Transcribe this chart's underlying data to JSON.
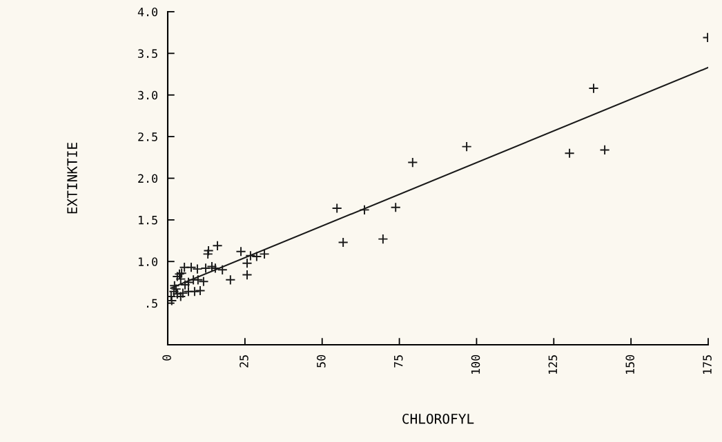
{
  "chart_data": {
    "type": "scatter",
    "xlabel": "CHLOROFYL",
    "ylabel": "EXTINKTIE",
    "xlim": [
      0,
      175
    ],
    "ylim": [
      0,
      4.0
    ],
    "xticks": [
      0,
      25,
      50,
      75,
      100,
      125,
      150,
      175
    ],
    "yticks": [
      {
        "value": 0.5,
        "label": ".5"
      },
      {
        "value": 1.0,
        "label": "1.0"
      },
      {
        "value": 1.5,
        "label": "1.5"
      },
      {
        "value": 2.0,
        "label": "2.0"
      },
      {
        "value": 2.5,
        "label": "2.5"
      },
      {
        "value": 3.0,
        "label": "3.0"
      },
      {
        "value": 3.5,
        "label": "3.5"
      },
      {
        "value": 4.0,
        "label": "4.0"
      }
    ],
    "grid": false,
    "marker": "cross",
    "series": [
      {
        "color": "#1a1a1a",
        "x": [
          174.8,
          137.9,
          141.5,
          130.1,
          96.8,
          79.3,
          54.8,
          56.8,
          63.7,
          73.8,
          69.7,
          16.1,
          13.2,
          13.0,
          23.7,
          26.8,
          28.8,
          31.3,
          25.7,
          25.7,
          20.3,
          17.7,
          15.4,
          14.3,
          12.3,
          9.6,
          7.6,
          5.4,
          3.8,
          3.1,
          4.5,
          4.2,
          8.3,
          9.8,
          11.6,
          6.7,
          5.6,
          10.5,
          8.7,
          6.7,
          4.9,
          2.2,
          2.0,
          1.1,
          1.3,
          3.1,
          4.2,
          2.7
        ],
        "values": [
          3.69,
          3.08,
          2.34,
          2.3,
          2.38,
          2.19,
          1.64,
          1.23,
          1.62,
          1.65,
          1.27,
          1.19,
          1.13,
          1.09,
          1.12,
          1.07,
          1.06,
          1.09,
          0.98,
          0.84,
          0.78,
          0.9,
          0.92,
          0.94,
          0.92,
          0.91,
          0.93,
          0.93,
          0.85,
          0.82,
          0.86,
          0.79,
          0.78,
          0.78,
          0.76,
          0.75,
          0.72,
          0.65,
          0.64,
          0.64,
          0.62,
          0.71,
          0.64,
          0.58,
          0.53,
          0.61,
          0.58,
          0.67
        ]
      },
      {
        "type": "line",
        "color": "#1a1a1a",
        "x": [
          1,
          175
        ],
        "values": [
          0.68,
          3.33
        ],
        "marker": "none"
      }
    ]
  }
}
